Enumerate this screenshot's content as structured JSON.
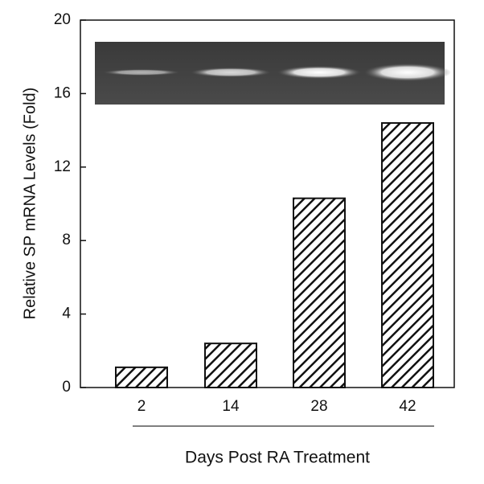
{
  "chart_data": {
    "type": "bar",
    "x_label": "Days Post RA Treatment",
    "y_label": "Relative SP mRNA Levels (Fold)",
    "categories": [
      "2",
      "14",
      "28",
      "42"
    ],
    "values": [
      1.1,
      2.4,
      10.3,
      14.4
    ],
    "color": "#111111",
    "hatch": true,
    "ylim": [
      0,
      20
    ],
    "yticks": [
      0,
      4,
      8,
      12,
      16,
      20
    ]
  }
}
